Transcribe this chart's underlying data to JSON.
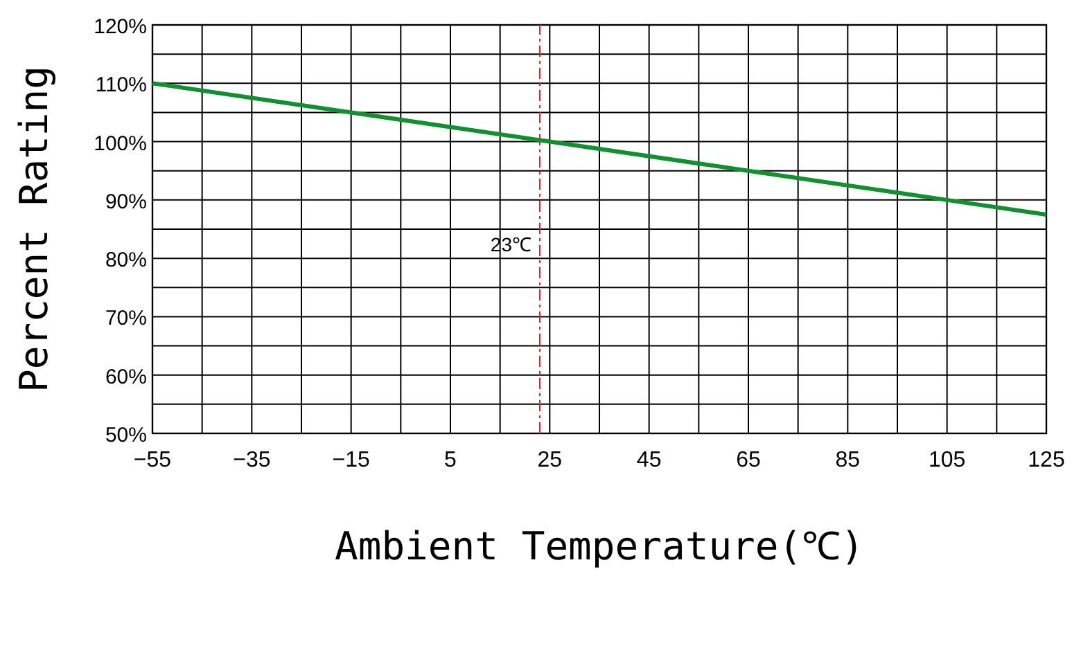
{
  "chart_data": {
    "type": "line",
    "xlabel": "Ambient Temperature(℃)",
    "ylabel": "Percent Rating",
    "x": [
      -55,
      -15,
      25,
      65,
      105,
      125
    ],
    "series": [
      {
        "color": "#109030",
        "values": [
          110,
          105,
          100,
          95,
          90,
          87.5
        ]
      }
    ],
    "xlim": [
      -55,
      125
    ],
    "xticks": [
      -55,
      {
        "value": -45,
        "label": null
      },
      -35,
      {
        "value": -25,
        "label": null
      },
      -15,
      {
        "value": -5,
        "label": null
      },
      5,
      {
        "value": 15,
        "label": null
      },
      25,
      {
        "value": 35,
        "label": null
      },
      45,
      {
        "value": 55,
        "label": null
      },
      65,
      {
        "value": 75,
        "label": null
      },
      85,
      {
        "value": 95,
        "label": null
      },
      105,
      {
        "value": 115,
        "label": null
      },
      125
    ],
    "ylim": [
      50,
      120
    ],
    "yticks": [
      {
        "value": 50,
        "label": "50%"
      },
      {
        "value": 55,
        "label": null
      },
      {
        "value": 60,
        "label": "60%"
      },
      {
        "value": 65,
        "label": null
      },
      {
        "value": 70,
        "label": "70%"
      },
      {
        "value": 75,
        "label": null
      },
      {
        "value": 80,
        "label": "80%"
      },
      {
        "value": 85,
        "label": null
      },
      {
        "value": 90,
        "label": "90%"
      },
      {
        "value": 95,
        "label": null
      },
      {
        "value": 100,
        "label": "100%"
      },
      {
        "value": 105,
        "label": null
      },
      {
        "value": 110,
        "label": "110%"
      },
      {
        "value": 115,
        "label": null
      },
      {
        "value": 120,
        "label": "120%"
      }
    ],
    "grid": true,
    "marker": "none",
    "line_style": "solid",
    "ref_lines": [
      {
        "axis": "x",
        "value": 23,
        "label": "23℃",
        "color": "#e02020",
        "line_style": "dashdot"
      }
    ]
  }
}
